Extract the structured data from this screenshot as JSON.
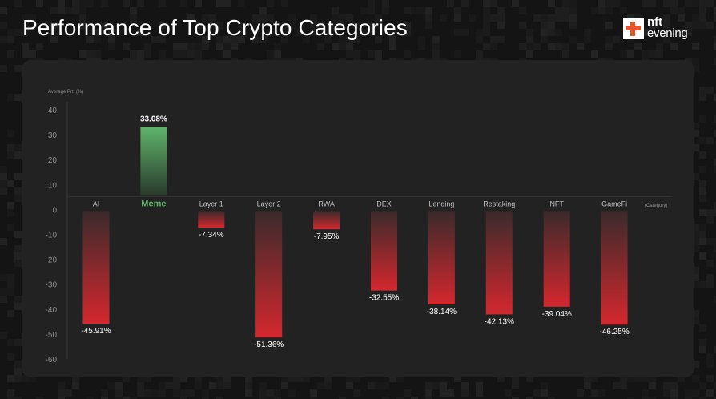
{
  "header": {
    "title": "Performance of Top Crypto Categories",
    "logo_line1": "nft",
    "logo_line2": "evening"
  },
  "colors": {
    "background": "#141414",
    "panel": "#222222",
    "positive": "#5fb46a",
    "negative": "#d4282e",
    "meme_label": "#5fb46a"
  },
  "chart_data": {
    "type": "bar",
    "ylabel": "Average Prt. (%)",
    "xlabel": "(Category)",
    "ylim": [
      -60,
      40
    ],
    "yticks": [
      40,
      30,
      20,
      10,
      0,
      -10,
      -20,
      -30,
      -40,
      -50,
      -60
    ],
    "categories": [
      "AI",
      "Meme",
      "Layer 1",
      "Layer 2",
      "RWA",
      "DEX",
      "Lending",
      "Restaking",
      "NFT",
      "GameFi"
    ],
    "values": [
      -45.91,
      33.08,
      -7.34,
      -51.36,
      -7.95,
      -32.55,
      -38.14,
      -42.13,
      -39.04,
      -46.25
    ],
    "value_labels": [
      "-45.91%",
      "33.08%",
      "-7.34%",
      "-51.36%",
      "-7.95%",
      "-32.55%",
      "-38.14%",
      "-42.13%",
      "-39.04%",
      "-46.25%"
    ],
    "highlight": "Meme",
    "grid": false,
    "legend": "none"
  }
}
